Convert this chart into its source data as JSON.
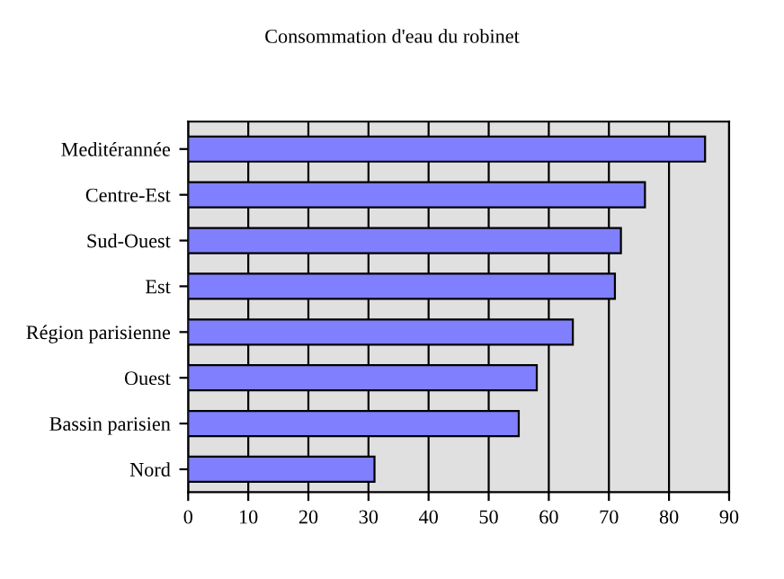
{
  "chart_data": {
    "type": "bar",
    "orientation": "horizontal",
    "title": "Consommation d'eau du robinet",
    "categories": [
      "Meditérannée",
      "Centre-Est",
      "Sud-Ouest",
      "Est",
      "Région parisienne",
      "Ouest",
      "Bassin parisien",
      "Nord"
    ],
    "values": [
      86,
      76,
      72,
      71,
      64,
      58,
      55,
      31
    ],
    "color": "#8080ff",
    "xlim": [
      0,
      90
    ],
    "xticks": [
      0,
      10,
      20,
      30,
      40,
      50,
      60,
      70,
      80,
      90
    ],
    "grid": "x"
  }
}
